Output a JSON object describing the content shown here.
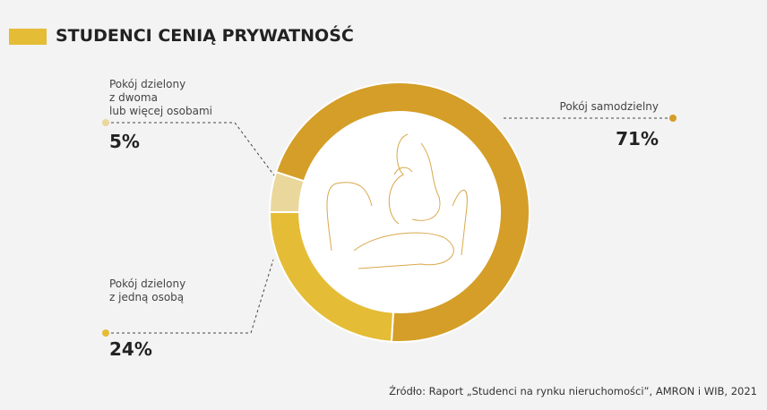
{
  "chart_data": {
    "type": "donut",
    "title": "STUDENCI CENIĄ PRYWATNOŚĆ",
    "categories": [
      "Pokój samodzielny",
      "Pokój dzielony\nz jedną osobą",
      "Pokój dzielony\nz dwoma\nlub więcej osobami"
    ],
    "values": [
      71,
      24,
      5
    ],
    "value_labels": [
      "71%",
      "24%",
      "5%"
    ],
    "colors": [
      "#d49e28",
      "#e5bc36",
      "#ead79c"
    ],
    "source": "Źródło: Raport „Studenci na rynku nieruchomości”, AMRON i WIB, 2021"
  }
}
